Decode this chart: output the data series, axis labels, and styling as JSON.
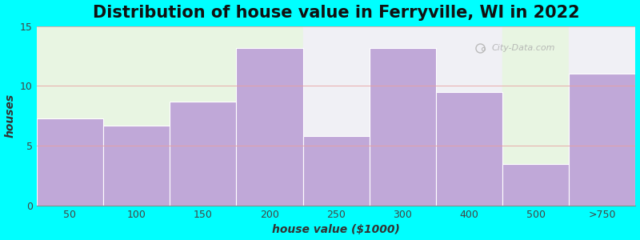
{
  "title": "Distribution of house value in Ferryville, WI in 2022",
  "categories": [
    "50",
    "100",
    "150",
    "200",
    "250",
    "300",
    "400",
    "500",
    ">750"
  ],
  "values": [
    7.3,
    6.7,
    8.7,
    13.2,
    5.8,
    13.2,
    9.5,
    3.5,
    11.0
  ],
  "bar_color": "#c0a8d8",
  "bar_edgecolor": "#ffffff",
  "background_color": "#00ffff",
  "bg_green": "#e8f5e2",
  "bg_white": "#f0f0f5",
  "xlabel": "house value ($1000)",
  "ylabel": "houses",
  "ylim": [
    0,
    15
  ],
  "yticks": [
    0,
    5,
    10,
    15
  ],
  "title_fontsize": 15,
  "axis_fontsize": 10,
  "tick_fontsize": 9,
  "watermark_text": "City-Data.com",
  "grid_color": "#ddaaaa",
  "title_color": "#111111",
  "bg_sections": [
    {
      "start": 0,
      "end": 4,
      "color": "#e8f5e2"
    },
    {
      "start": 4,
      "end": 7,
      "color": "#f0f0f5"
    },
    {
      "start": 7,
      "end": 8,
      "color": "#e8f5e2"
    },
    {
      "start": 8,
      "end": 9,
      "color": "#f0f0f5"
    }
  ]
}
